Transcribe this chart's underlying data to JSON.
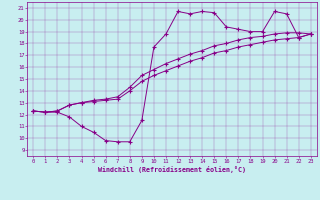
{
  "xlabel": "Windchill (Refroidissement éolien,°C)",
  "bg_color": "#c8eef0",
  "line_color": "#880088",
  "xlim": [
    -0.5,
    23.5
  ],
  "ylim": [
    8.5,
    21.5
  ],
  "xticks": [
    0,
    1,
    2,
    3,
    4,
    5,
    6,
    7,
    8,
    9,
    10,
    11,
    12,
    13,
    14,
    15,
    16,
    17,
    18,
    19,
    20,
    21,
    22,
    23
  ],
  "yticks": [
    9,
    10,
    11,
    12,
    13,
    14,
    15,
    16,
    17,
    18,
    19,
    20,
    21
  ],
  "series": [
    {
      "x": [
        0,
        1,
        2,
        3,
        4,
        5,
        6,
        7,
        8,
        9,
        10,
        11,
        12,
        13,
        14,
        15,
        16,
        17,
        18,
        19,
        20,
        21,
        22,
        23
      ],
      "y": [
        12.3,
        12.2,
        12.2,
        11.8,
        11.0,
        10.5,
        9.8,
        9.7,
        9.7,
        11.5,
        17.7,
        18.8,
        20.7,
        20.5,
        20.7,
        20.6,
        19.4,
        19.2,
        19.0,
        19.0,
        20.7,
        20.5,
        18.5,
        18.8
      ]
    },
    {
      "x": [
        0,
        1,
        2,
        3,
        4,
        5,
        6,
        7,
        8,
        9,
        10,
        11,
        12,
        13,
        14,
        15,
        16,
        17,
        18,
        19,
        20,
        21,
        22,
        23
      ],
      "y": [
        12.3,
        12.2,
        12.3,
        12.8,
        13.0,
        13.2,
        13.3,
        13.5,
        14.3,
        15.3,
        15.8,
        16.3,
        16.7,
        17.1,
        17.4,
        17.8,
        18.0,
        18.3,
        18.5,
        18.6,
        18.8,
        18.9,
        18.9,
        18.8
      ]
    },
    {
      "x": [
        0,
        1,
        2,
        3,
        4,
        5,
        6,
        7,
        8,
        9,
        10,
        11,
        12,
        13,
        14,
        15,
        16,
        17,
        18,
        19,
        20,
        21,
        22,
        23
      ],
      "y": [
        12.3,
        12.2,
        12.3,
        12.8,
        13.0,
        13.1,
        13.2,
        13.3,
        14.0,
        14.8,
        15.3,
        15.7,
        16.1,
        16.5,
        16.8,
        17.2,
        17.4,
        17.7,
        17.9,
        18.1,
        18.3,
        18.4,
        18.5,
        18.8
      ]
    }
  ]
}
